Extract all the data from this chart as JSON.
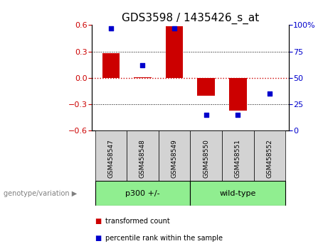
{
  "title": "GDS3598 / 1435426_s_at",
  "samples": [
    "GSM458547",
    "GSM458548",
    "GSM458549",
    "GSM458550",
    "GSM458551",
    "GSM458552"
  ],
  "transformed_count": [
    0.28,
    0.01,
    0.585,
    -0.2,
    -0.37,
    0.0
  ],
  "percentile_rank": [
    97,
    62,
    97,
    15,
    15,
    35
  ],
  "bar_color": "#cc0000",
  "scatter_color": "#0000cc",
  "ylim": [
    -0.6,
    0.6
  ],
  "yticks_left": [
    -0.6,
    -0.3,
    0.0,
    0.3,
    0.6
  ],
  "yticks_right": [
    0,
    25,
    50,
    75,
    100
  ],
  "zero_line_color": "#cc0000",
  "grid_color": "#000000",
  "group1_label": "p300 +/-",
  "group2_label": "wild-type",
  "group_color": "#90ee90",
  "sample_box_color": "#d3d3d3",
  "genotype_label": "genotype/variation",
  "legend_red": "transformed count",
  "legend_blue": "percentile rank within the sample",
  "title_fontsize": 11,
  "tick_fontsize": 8,
  "bar_width": 0.55,
  "fig_bg": "#ffffff"
}
